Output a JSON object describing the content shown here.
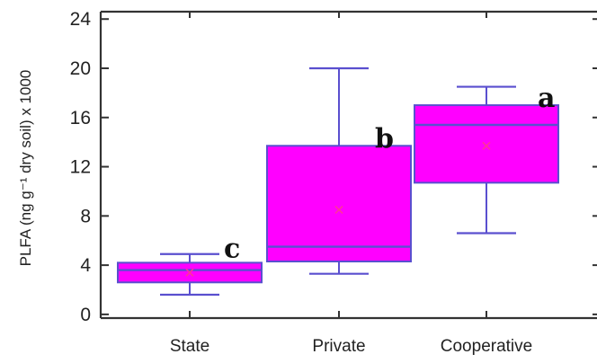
{
  "chart_data": {
    "type": "box",
    "ylabel": "PLFA (ng g⁻¹ dry soil) x 1000",
    "ylim": [
      -0.3,
      24.6
    ],
    "yticks": [
      0,
      4,
      8,
      12,
      16,
      20,
      24
    ],
    "grid": false,
    "colors": {
      "box_fill": "#ff00ff",
      "box_edge": "#5a4fcf",
      "whisker": "#5a4fcf",
      "median": "#5a4fcf",
      "mean_marker": "#ff3399",
      "axis": "#333333"
    },
    "categories": [
      "State",
      "Private",
      "Cooperative"
    ],
    "boxes": [
      {
        "category": "State",
        "min": 1.6,
        "q1": 2.6,
        "median": 3.6,
        "q3": 4.2,
        "max": 4.9,
        "mean": 3.4,
        "letter": "c"
      },
      {
        "category": "Private",
        "min": 3.3,
        "q1": 4.3,
        "median": 5.5,
        "q3": 13.7,
        "max": 20.0,
        "mean": 8.5,
        "letter": "b"
      },
      {
        "category": "Cooperative",
        "min": 6.6,
        "q1": 10.7,
        "median": 15.4,
        "q3": 17.0,
        "max": 18.5,
        "mean": 13.7,
        "letter": "a"
      }
    ]
  }
}
